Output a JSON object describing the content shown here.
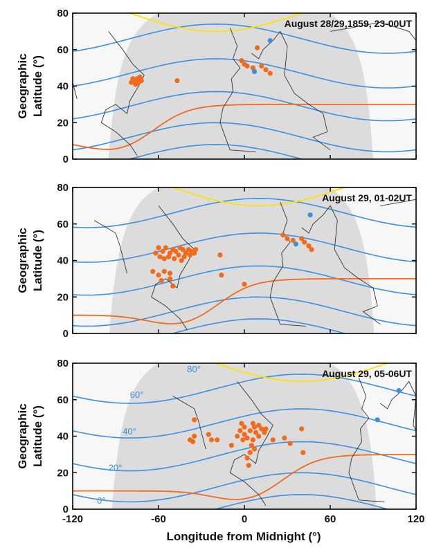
{
  "figure": {
    "xlabel": "Longitude from Midnight (°)",
    "ylabel": [
      "Geographic",
      "Latitude (°)"
    ]
  },
  "colors": {
    "report": "#f26a1b",
    "report_europe": "#3b8fe0",
    "contour": "#3b8fe0",
    "aurora_boundary": "#ffe100",
    "terminator": "#f26a1b",
    "night": "#dcdcdc",
    "day": "#f7f7f7",
    "coast": "#333333"
  },
  "chart_data": [
    {
      "type": "scatter",
      "title": "August 28/29,1859, 23-00UT",
      "xlim": [
        -120,
        120
      ],
      "ylim": [
        0,
        80
      ],
      "yticks": [
        0,
        20,
        40,
        60,
        80
      ],
      "xticks": [],
      "contour_labels": [],
      "series": [
        {
          "color": "orange",
          "points": [
            [
              -79,
              42
            ],
            [
              -77,
              43
            ],
            [
              -75,
              44
            ],
            [
              -73,
              45
            ],
            [
              -72,
              43
            ],
            [
              -78,
              44
            ],
            [
              -76,
              41
            ],
            [
              -74,
              42
            ],
            [
              -47,
              43
            ],
            [
              -2,
              54
            ],
            [
              0,
              52
            ],
            [
              2,
              51
            ],
            [
              6,
              50
            ],
            [
              9,
              61
            ],
            [
              12,
              51
            ],
            [
              15,
              49
            ],
            [
              18,
              47
            ]
          ]
        },
        {
          "color": "blue",
          "points": [
            [
              7,
              48
            ],
            [
              18,
              65
            ]
          ]
        }
      ]
    },
    {
      "type": "scatter",
      "title": "August 29, 01-02UT",
      "xlim": [
        -120,
        120
      ],
      "ylim": [
        0,
        80
      ],
      "yticks": [
        0,
        20,
        40,
        60,
        80
      ],
      "xticks": [],
      "contour_labels": [],
      "series": [
        {
          "color": "orange",
          "points": [
            [
              -60,
              47
            ],
            [
              -57,
              45
            ],
            [
              -55,
              47
            ],
            [
              -52,
              44
            ],
            [
              -50,
              46
            ],
            [
              -48,
              45
            ],
            [
              -45,
              47
            ],
            [
              -43,
              46
            ],
            [
              -41,
              44
            ],
            [
              -39,
              46
            ],
            [
              -37,
              45
            ],
            [
              -35,
              44
            ],
            [
              -59,
              42
            ],
            [
              -56,
              41
            ],
            [
              -53,
              42
            ],
            [
              -49,
              41
            ],
            [
              -46,
              43
            ],
            [
              -42,
              42
            ],
            [
              -38,
              43
            ],
            [
              -44,
              40
            ],
            [
              -34,
              46
            ],
            [
              -62,
              44
            ],
            [
              -64,
              34
            ],
            [
              -60,
              32
            ],
            [
              -56,
              34
            ],
            [
              -52,
              33
            ],
            [
              -58,
              29
            ],
            [
              -52,
              30
            ],
            [
              -50,
              26
            ],
            [
              -17,
              43
            ],
            [
              -16,
              32
            ],
            [
              0,
              27
            ],
            [
              27,
              54
            ],
            [
              30,
              52
            ],
            [
              34,
              51
            ],
            [
              40,
              52
            ],
            [
              42,
              50
            ],
            [
              45,
              48
            ],
            [
              47,
              46
            ]
          ]
        },
        {
          "color": "blue",
          "points": [
            [
              36,
              49
            ],
            [
              46,
              65
            ]
          ]
        }
      ]
    },
    {
      "type": "scatter",
      "title": "August 29, 05-06UT",
      "xlim": [
        -120,
        120
      ],
      "ylim": [
        0,
        80
      ],
      "yticks": [
        0,
        20,
        40,
        60,
        80
      ],
      "xticks": [
        -120,
        -60,
        0,
        60,
        120
      ],
      "contour_labels": [
        {
          "text": "80°",
          "x": -40,
          "y": 75
        },
        {
          "text": "60°",
          "x": -80,
          "y": 61
        },
        {
          "text": "40°",
          "x": -85,
          "y": 41
        },
        {
          "text": "20°",
          "x": -95,
          "y": 21
        },
        {
          "text": "0°",
          "x": -103,
          "y": 3
        }
      ],
      "series": [
        {
          "color": "orange",
          "points": [
            [
              -35,
              49
            ],
            [
              -35,
              40
            ],
            [
              -38,
              38
            ],
            [
              -36,
              37
            ],
            [
              -25,
              41
            ],
            [
              -23,
              38
            ],
            [
              -19,
              38
            ],
            [
              -9,
              35
            ],
            [
              -2,
              47
            ],
            [
              0,
              45
            ],
            [
              -3,
              43
            ],
            [
              0,
              41
            ],
            [
              2,
              39
            ],
            [
              -1,
              38
            ],
            [
              4,
              43
            ],
            [
              6,
              47
            ],
            [
              7,
              45
            ],
            [
              8,
              42
            ],
            [
              10,
              46
            ],
            [
              12,
              44
            ],
            [
              14,
              42
            ],
            [
              10,
              40
            ],
            [
              6,
              38
            ],
            [
              5,
              35
            ],
            [
              7,
              33
            ],
            [
              4,
              31
            ],
            [
              2,
              28
            ],
            [
              3,
              24
            ],
            [
              15,
              44
            ],
            [
              20,
              38
            ],
            [
              28,
              39
            ],
            [
              32,
              36
            ],
            [
              40,
              44
            ],
            [
              41,
              31
            ],
            [
              -5,
              40
            ]
          ]
        },
        {
          "color": "blue",
          "points": [
            [
              93,
              49
            ],
            [
              108,
              65
            ]
          ]
        }
      ]
    }
  ]
}
